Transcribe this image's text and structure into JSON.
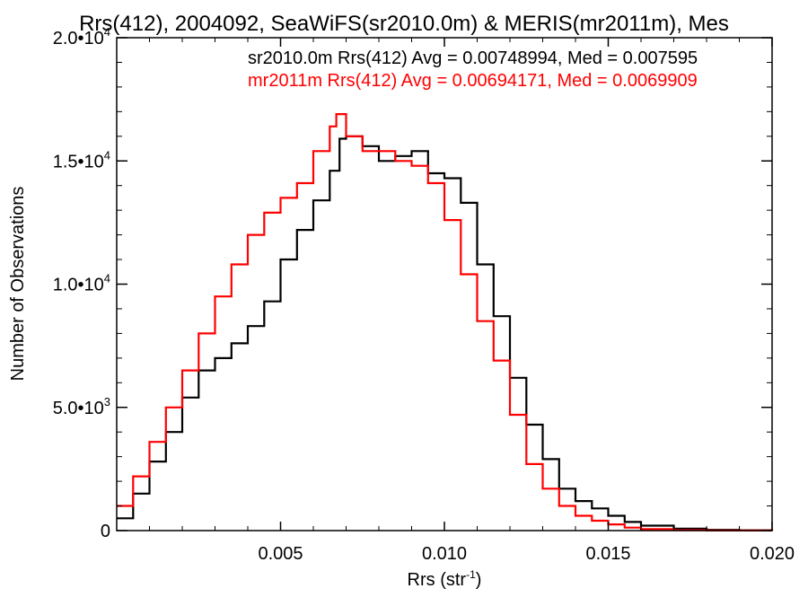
{
  "chart_data": {
    "type": "line",
    "title": "Rrs(412), 2004092, SeaWiFS(sr2010.0m) & MERIS(mr2011m), Mes",
    "xlabel": "Rrs (str",
    "xlabel_sup": "-1",
    "xlabel_end": ")",
    "ylabel": "Number of Observations",
    "xlim": [
      0.0,
      0.02
    ],
    "ylim": [
      0,
      20000
    ],
    "x_ticks": [
      {
        "value": 0.005,
        "label": "0.005"
      },
      {
        "value": 0.01,
        "label": "0.010"
      },
      {
        "value": 0.015,
        "label": "0.015"
      },
      {
        "value": 0.02,
        "label": "0.020"
      }
    ],
    "y_ticks": [
      {
        "value": 0,
        "mant": "0",
        "exp": ""
      },
      {
        "value": 5000,
        "mant": "5.0•10",
        "exp": "3"
      },
      {
        "value": 10000,
        "mant": "1.0•10",
        "exp": "4"
      },
      {
        "value": 15000,
        "mant": "1.5•10",
        "exp": "4"
      },
      {
        "value": 20000,
        "mant": "2.0•10",
        "exp": "4"
      }
    ],
    "annotations": [
      {
        "text": "sr2010.0m Rrs(412) Avg = 0.00748994, Med = 0.007595",
        "color": "#000000"
      },
      {
        "text": "mr2011m Rrs(412) Avg = 0.00694171, Med = 0.0069909",
        "color": "#ff0000"
      }
    ],
    "grid": false,
    "series": [
      {
        "color": "#000000",
        "x": [
          0.0,
          0.0005,
          0.001,
          0.0015,
          0.002,
          0.0025,
          0.003,
          0.0035,
          0.004,
          0.0045,
          0.005,
          0.0055,
          0.006,
          0.0065,
          0.0068,
          0.007,
          0.0075,
          0.008,
          0.0085,
          0.009,
          0.0095,
          0.01,
          0.0105,
          0.011,
          0.0115,
          0.012,
          0.0125,
          0.013,
          0.0135,
          0.014,
          0.0145,
          0.015,
          0.0155,
          0.016,
          0.017,
          0.018,
          0.019,
          0.02
        ],
        "values": [
          500,
          1500,
          2800,
          4000,
          5400,
          6500,
          7000,
          7600,
          8300,
          9300,
          11000,
          12200,
          13400,
          14600,
          15900,
          16000,
          15600,
          15000,
          15200,
          15400,
          14500,
          14300,
          13300,
          10800,
          8700,
          6200,
          4300,
          2900,
          1700,
          1200,
          900,
          600,
          350,
          200,
          80,
          30,
          10,
          0
        ]
      },
      {
        "color": "#ff0000",
        "x": [
          0.0,
          0.0005,
          0.001,
          0.0015,
          0.002,
          0.0025,
          0.003,
          0.0035,
          0.004,
          0.0045,
          0.005,
          0.0055,
          0.006,
          0.0065,
          0.0067,
          0.007,
          0.0075,
          0.008,
          0.0085,
          0.009,
          0.0095,
          0.01,
          0.0105,
          0.011,
          0.0115,
          0.012,
          0.0125,
          0.013,
          0.0135,
          0.014,
          0.0145,
          0.015,
          0.0155,
          0.016,
          0.017,
          0.018,
          0.02
        ],
        "values": [
          1000,
          2200,
          3600,
          5000,
          6500,
          8000,
          9500,
          10800,
          12000,
          12900,
          13500,
          14100,
          15400,
          16400,
          16900,
          16000,
          15400,
          15400,
          15000,
          14800,
          14100,
          12600,
          10400,
          8500,
          6900,
          4700,
          2700,
          1700,
          1000,
          600,
          400,
          250,
          120,
          60,
          20,
          5,
          0
        ]
      }
    ]
  }
}
